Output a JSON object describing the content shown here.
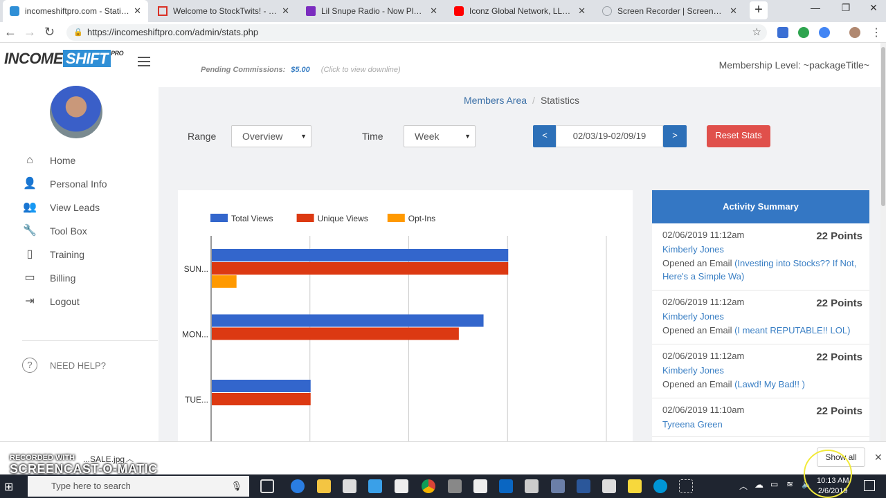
{
  "browser": {
    "tabs": [
      {
        "title": "incomeshiftpro.com - Statistics",
        "color": "#2f8fd6"
      },
      {
        "title": "Welcome to StockTwits! - icon",
        "color": "#d93025"
      },
      {
        "title": "Lil Snupe Radio - Now Playing",
        "color": "#7b2cbf"
      },
      {
        "title": "Iconz Global Network, LLC. - Yo",
        "color": "#ff0000"
      },
      {
        "title": "Screen Recorder | Screencast-O",
        "color": "#9aa0a6"
      }
    ],
    "url": "https://incomeshiftpro.com/admin/stats.php"
  },
  "sidebar": {
    "logo": {
      "part1": "INCOME",
      "part2": "SHIFT",
      "part3": "PRO"
    },
    "items": [
      {
        "label": "Home",
        "icon": "⌂",
        "icon_name": "home-icon"
      },
      {
        "label": "Personal Info",
        "icon": "👤",
        "icon_name": "user-icon"
      },
      {
        "label": "View Leads",
        "icon": "👥",
        "icon_name": "users-icon"
      },
      {
        "label": "Tool Box",
        "icon": "🔧",
        "icon_name": "wrench-icon"
      },
      {
        "label": "Training",
        "icon": "▯",
        "icon_name": "book-icon"
      },
      {
        "label": "Billing",
        "icon": "▭",
        "icon_name": "folder-icon"
      },
      {
        "label": "Logout",
        "icon": "⇥",
        "icon_name": "logout-icon"
      }
    ],
    "help": "NEED HELP?"
  },
  "header": {
    "pending_label": "Pending Commissions:",
    "pending_amount": "$5.00",
    "pending_hint": "(Click to view downline)",
    "membership": "Membership Level: ~packageTitle~"
  },
  "breadcrumb": {
    "parent": "Members Area",
    "current": "Statistics"
  },
  "filters": {
    "range_label": "Range",
    "range_value": "Overview",
    "time_label": "Time",
    "time_value": "Week",
    "prev": "<",
    "next": ">",
    "date_range": "02/03/19-02/09/19",
    "reset": "Reset Stats"
  },
  "chart_data": {
    "type": "bar",
    "orientation": "horizontal",
    "categories": [
      "SUN...",
      "MON...",
      "TUE..."
    ],
    "series": [
      {
        "name": "Total Views",
        "color": "#3366cc",
        "values": [
          12,
          11,
          4
        ]
      },
      {
        "name": "Unique Views",
        "color": "#dc3912",
        "values": [
          12,
          10,
          4
        ]
      },
      {
        "name": "Opt-Ins",
        "color": "#ff9900",
        "values": [
          1,
          0,
          0
        ]
      }
    ],
    "xlim": [
      0,
      16
    ],
    "grid": true,
    "legend": "top-left"
  },
  "activity": {
    "title": "Activity Summary",
    "items": [
      {
        "time": "02/06/2019 11:12am",
        "points": "22 Points",
        "name": "Kimberly Jones",
        "action": "Opened an Email",
        "link": "(Investing into Stocks?? If Not, Here's a Simple Wa)"
      },
      {
        "time": "02/06/2019 11:12am",
        "points": "22 Points",
        "name": "Kimberly Jones",
        "action": "Opened an Email",
        "link": "(I meant REPUTABLE!! LOL)"
      },
      {
        "time": "02/06/2019 11:12am",
        "points": "22 Points",
        "name": "Kimberly Jones",
        "action": "Opened an Email",
        "link": "(Lawd! My Bad!! )"
      },
      {
        "time": "02/06/2019 11:10am",
        "points": "22 Points",
        "name": "Tyreena Green",
        "action": "",
        "link": ""
      }
    ]
  },
  "download": {
    "file": "...SALE.jpg",
    "show_all": "Show all"
  },
  "taskbar": {
    "search": "Type here to search",
    "time": "10:13 AM",
    "date": "2/6/2019"
  },
  "watermark": {
    "line1": "RECORDED WITH",
    "line2": "SCREENCAST-O-MATIC"
  }
}
